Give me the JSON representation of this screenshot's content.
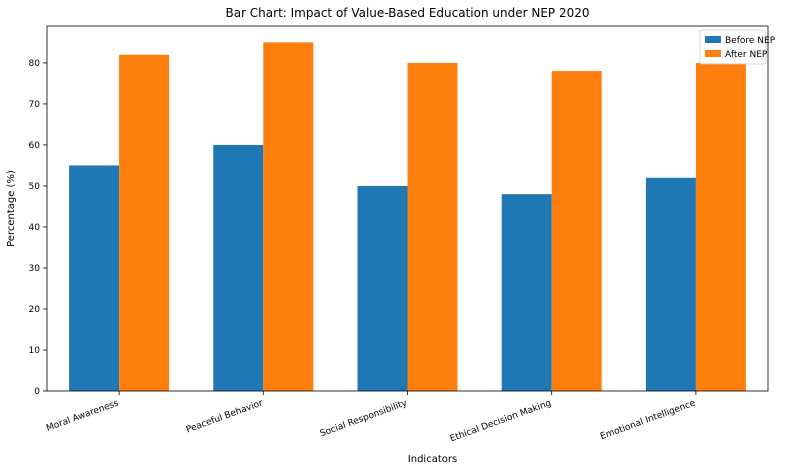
{
  "chart_data": {
    "type": "bar",
    "title": "Bar Chart: Impact of Value-Based Education under NEP 2020",
    "xlabel": "Indicators",
    "ylabel": "Percentage (%)",
    "categories": [
      "Moral Awareness",
      "Peaceful Behavior",
      "Social Responsibility",
      "Ethical Decision Making",
      "Emotional Intelligence"
    ],
    "series": [
      {
        "name": "Before NEP",
        "color": "#1f77b4",
        "values": [
          55,
          60,
          50,
          48,
          52
        ]
      },
      {
        "name": "After NEP",
        "color": "#ff7f0e",
        "values": [
          82,
          85,
          80,
          78,
          80
        ]
      }
    ],
    "ylim": [
      0,
      89
    ],
    "yticks": [
      0,
      10,
      20,
      30,
      40,
      50,
      60,
      70,
      80
    ],
    "legend": "top-right",
    "grid": false
  }
}
